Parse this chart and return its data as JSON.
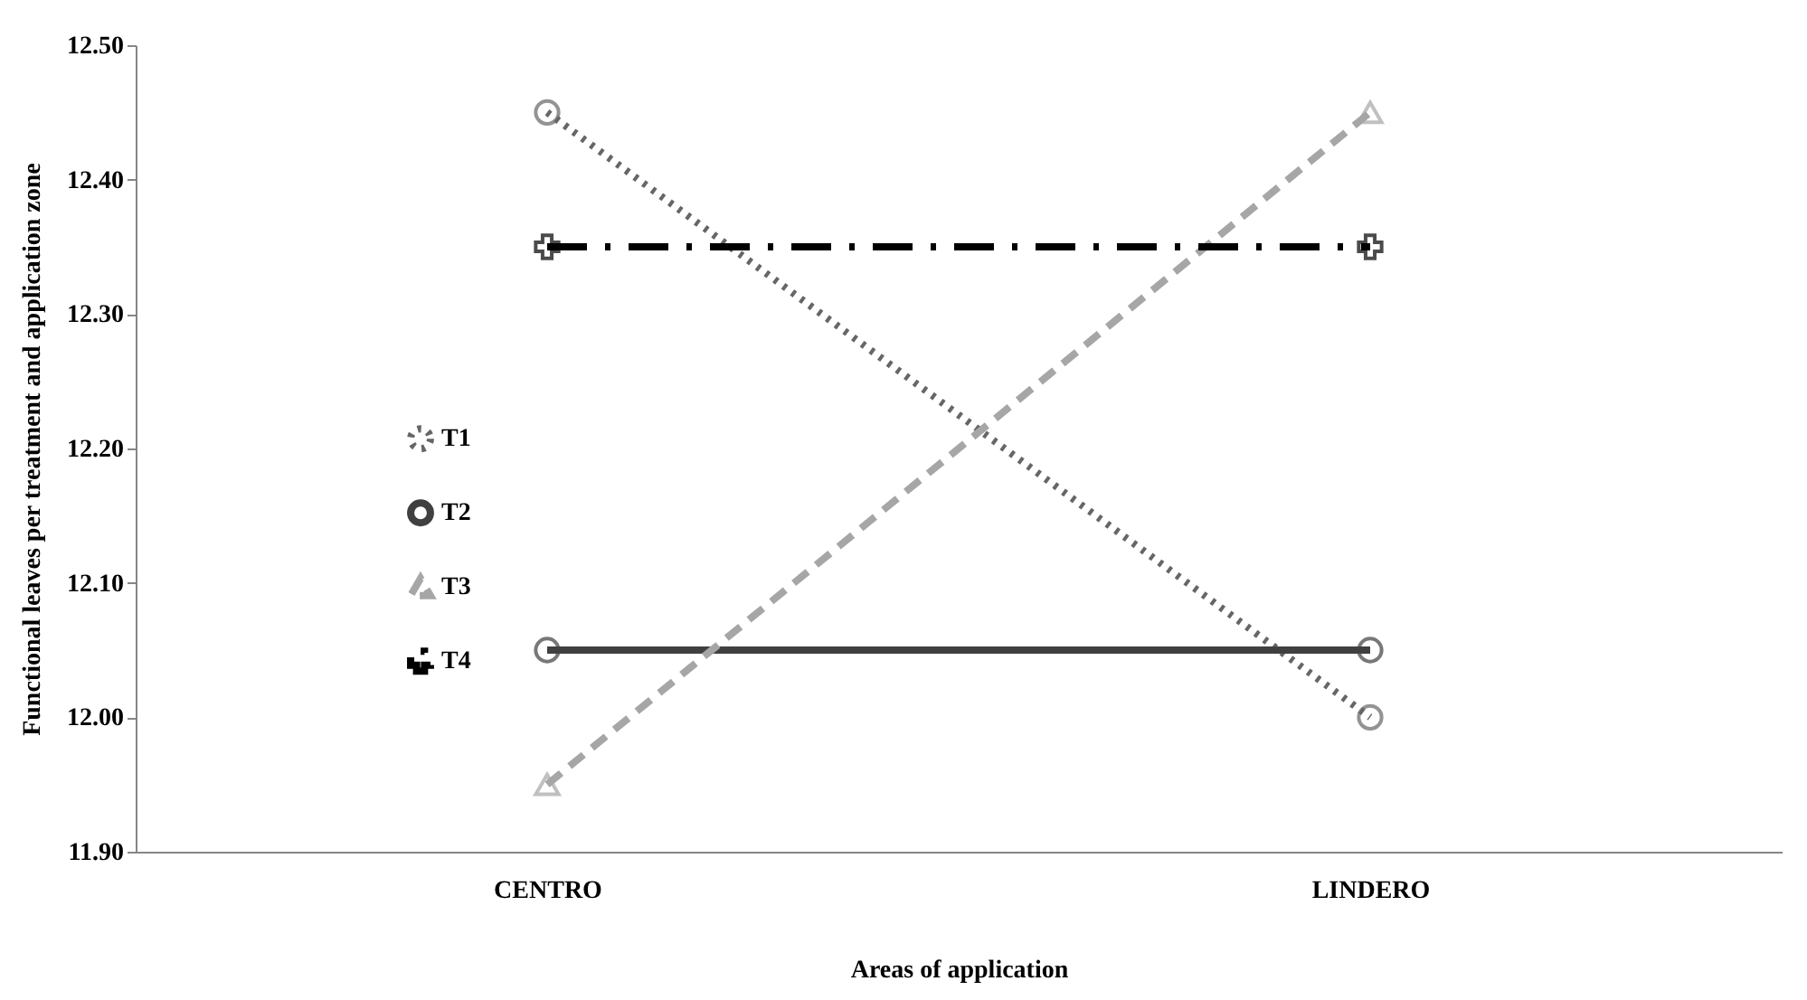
{
  "chart_data": {
    "type": "line",
    "xlabel": "Areas of application",
    "ylabel": "Functional leaves per treatment and application zone",
    "categories": [
      "CENTRO",
      "LINDERO"
    ],
    "series": [
      {
        "name": "T1",
        "color": "#666666",
        "values": [
          12.45,
          12.0
        ],
        "marker": "circle",
        "line_style": "dotted"
      },
      {
        "name": "T2",
        "color": "#404040",
        "values": [
          12.05,
          12.05
        ],
        "marker": "circle",
        "line_style": "solid"
      },
      {
        "name": "T3",
        "color": "#a6a6a6",
        "values": [
          11.95,
          12.45
        ],
        "marker": "triangle",
        "line_style": "dashed"
      },
      {
        "name": "T4",
        "color": "#000000",
        "values": [
          12.35,
          12.35
        ],
        "marker": "cross",
        "line_style": "dashdot"
      }
    ],
    "ylim": [
      11.9,
      12.5
    ],
    "yticks": [
      {
        "value": 11.9,
        "label": "11.90"
      },
      {
        "value": 12.0,
        "label": "12.00"
      },
      {
        "value": 12.1,
        "label": "12.10"
      },
      {
        "value": 12.2,
        "label": "12.20"
      },
      {
        "value": 12.3,
        "label": "12.30"
      },
      {
        "value": 12.4,
        "label": "12.40"
      },
      {
        "value": 12.5,
        "label": "12.50"
      }
    ],
    "legend": "left",
    "grid": false
  }
}
